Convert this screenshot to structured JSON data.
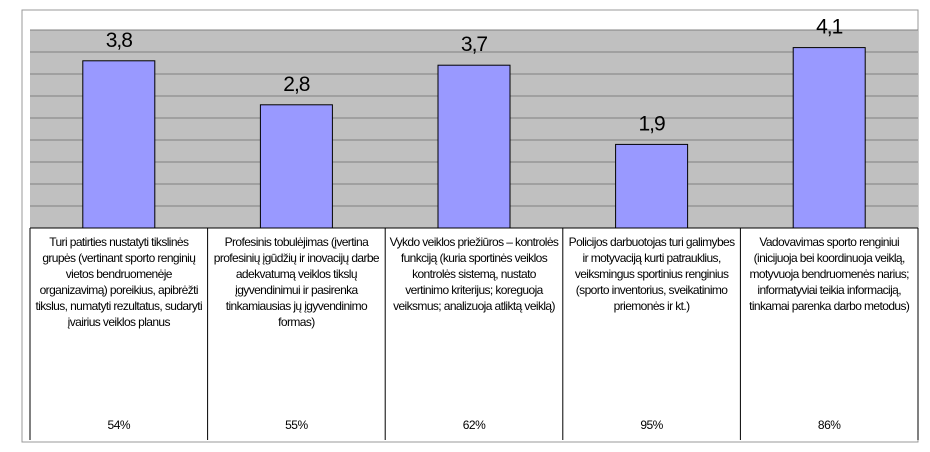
{
  "chart_data": {
    "type": "bar",
    "categories": [
      "Turi patirties nustatyti tikslinės grupės (vertinant sporto renginių vietos bendruomenėje organizavimą) poreikius, apibrėžti tikslus, numatyti rezultatus, sudaryti įvairius veiklos planus",
      "Profesinis tobulėjimas (įvertina profesinių įgūdžių ir inovacijų darbe adekvatumą veiklos tikslų įgyvendinimui ir pasirenka tinkamiausias jų įgyvendinimo formas)",
      "Vykdo veiklos priežiūros – kontrolės funkciją (kuria sportinės veiklos kontrolės sistemą, nustato vertinimo kriterijus; koreguoja veiksmus; analizuoja atliktą veiklą)",
      "Policijos darbuotojas turi galimybes ir motyvaciją kurti patrauklius, veiksmingus sportinius renginius (sporto inventorius, sveikatinimo priemonės ir kt.)",
      "Vadovavimas sporto renginiui (inicijuoja bei koordinuoja veiklą, motyvuoja bendruomenės narius; informatyviai teikia informaciją, tinkamai parenka darbo metodus)"
    ],
    "values": [
      3.8,
      2.8,
      3.7,
      1.9,
      4.1
    ],
    "value_labels": [
      "3,8",
      "2,8",
      "3,7",
      "1,9",
      "4,1"
    ],
    "percentages": [
      "54%",
      "55%",
      "62%",
      "95%",
      "86%"
    ],
    "color": "#9999ff",
    "ylim": [
      0,
      4.5
    ],
    "yticks": [
      0,
      0.5,
      1,
      1.5,
      2,
      2.5,
      3,
      3.5,
      4,
      4.5
    ],
    "grid": true
  }
}
